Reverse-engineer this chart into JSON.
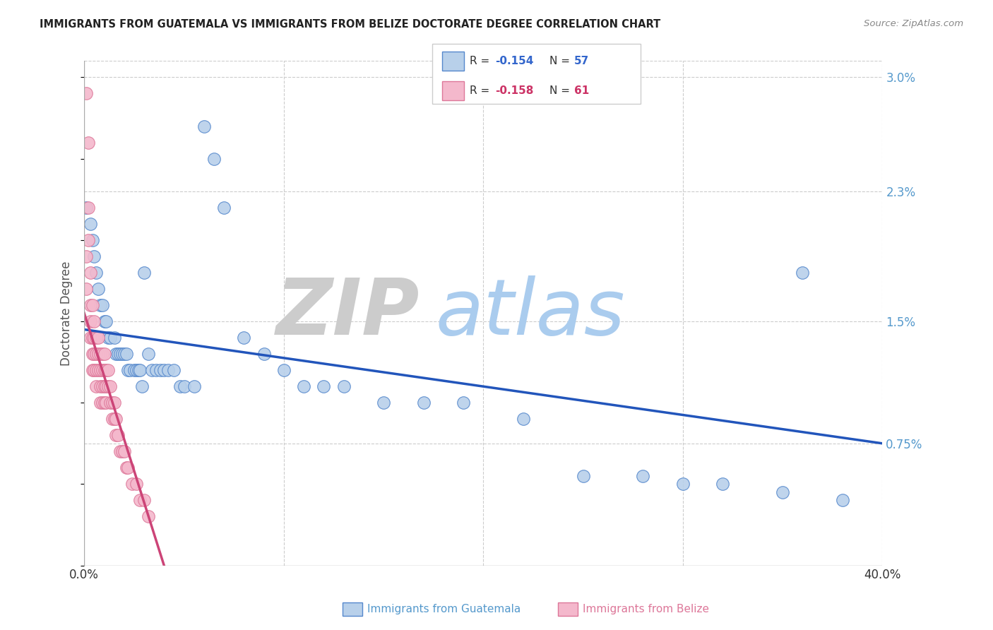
{
  "title": "IMMIGRANTS FROM GUATEMALA VS IMMIGRANTS FROM BELIZE DOCTORATE DEGREE CORRELATION CHART",
  "source": "Source: ZipAtlas.com",
  "ylabel": "Doctorate Degree",
  "legend_R1": "R = -0.154",
  "legend_N1": "N = 57",
  "legend_R2": "R = -0.158",
  "legend_N2": "N = 61",
  "legend_label1": "Immigrants from Guatemala",
  "legend_label2": "Immigrants from Belize",
  "color_guatemala": "#b8d0ea",
  "color_belize": "#f4b8cc",
  "color_edge_guatemala": "#5588cc",
  "color_edge_belize": "#dd7799",
  "color_trendline_guatemala": "#2255bb",
  "color_trendline_belize": "#cc4477",
  "background_color": "#ffffff",
  "watermark_zip_color": "#cccccc",
  "watermark_atlas_color": "#aaccee",
  "xmin": 0.0,
  "xmax": 0.4,
  "ymin": 0.0,
  "ymax": 0.031,
  "ytick_values": [
    0.0075,
    0.015,
    0.023,
    0.03
  ],
  "ytick_labels": [
    "0.75%",
    "1.5%",
    "2.3%",
    "3.0%"
  ],
  "guatemala_x": [
    0.001,
    0.003,
    0.004,
    0.005,
    0.006,
    0.007,
    0.008,
    0.009,
    0.01,
    0.011,
    0.012,
    0.013,
    0.015,
    0.016,
    0.017,
    0.018,
    0.019,
    0.02,
    0.021,
    0.022,
    0.023,
    0.025,
    0.026,
    0.027,
    0.028,
    0.029,
    0.03,
    0.032,
    0.034,
    0.036,
    0.038,
    0.04,
    0.042,
    0.045,
    0.048,
    0.05,
    0.055,
    0.06,
    0.065,
    0.07,
    0.08,
    0.09,
    0.1,
    0.11,
    0.12,
    0.13,
    0.15,
    0.17,
    0.19,
    0.22,
    0.25,
    0.28,
    0.3,
    0.32,
    0.35,
    0.36,
    0.38
  ],
  "guatemala_y": [
    0.022,
    0.021,
    0.02,
    0.019,
    0.018,
    0.017,
    0.016,
    0.016,
    0.015,
    0.015,
    0.014,
    0.014,
    0.014,
    0.013,
    0.013,
    0.013,
    0.013,
    0.013,
    0.013,
    0.012,
    0.012,
    0.012,
    0.012,
    0.012,
    0.012,
    0.011,
    0.018,
    0.013,
    0.012,
    0.012,
    0.012,
    0.012,
    0.012,
    0.012,
    0.011,
    0.011,
    0.011,
    0.027,
    0.025,
    0.022,
    0.014,
    0.013,
    0.012,
    0.011,
    0.011,
    0.011,
    0.01,
    0.01,
    0.01,
    0.009,
    0.0055,
    0.0055,
    0.005,
    0.005,
    0.0045,
    0.018,
    0.004
  ],
  "belize_x": [
    0.001,
    0.001,
    0.001,
    0.002,
    0.002,
    0.002,
    0.003,
    0.003,
    0.003,
    0.003,
    0.004,
    0.004,
    0.004,
    0.004,
    0.005,
    0.005,
    0.005,
    0.005,
    0.006,
    0.006,
    0.006,
    0.006,
    0.007,
    0.007,
    0.007,
    0.008,
    0.008,
    0.008,
    0.008,
    0.009,
    0.009,
    0.009,
    0.009,
    0.01,
    0.01,
    0.01,
    0.01,
    0.011,
    0.011,
    0.011,
    0.012,
    0.012,
    0.013,
    0.013,
    0.014,
    0.014,
    0.015,
    0.015,
    0.016,
    0.016,
    0.017,
    0.018,
    0.019,
    0.02,
    0.021,
    0.022,
    0.024,
    0.026,
    0.028,
    0.03,
    0.032
  ],
  "belize_y": [
    0.029,
    0.019,
    0.017,
    0.026,
    0.022,
    0.02,
    0.018,
    0.016,
    0.015,
    0.014,
    0.016,
    0.014,
    0.013,
    0.012,
    0.015,
    0.014,
    0.013,
    0.012,
    0.014,
    0.013,
    0.012,
    0.011,
    0.014,
    0.013,
    0.012,
    0.013,
    0.012,
    0.011,
    0.01,
    0.013,
    0.012,
    0.011,
    0.01,
    0.013,
    0.012,
    0.011,
    0.01,
    0.012,
    0.011,
    0.01,
    0.012,
    0.011,
    0.011,
    0.01,
    0.01,
    0.009,
    0.01,
    0.009,
    0.009,
    0.008,
    0.008,
    0.007,
    0.007,
    0.007,
    0.006,
    0.006,
    0.005,
    0.005,
    0.004,
    0.004,
    0.003
  ],
  "trendline_belize_x0": 0.0,
  "trendline_belize_x1": 0.04,
  "trendline_belize_y0": 0.0155,
  "trendline_belize_y1": 0.0,
  "trendline_guatemala_x0": 0.0,
  "trendline_guatemala_x1": 0.4,
  "trendline_guatemala_y0": 0.0145,
  "trendline_guatemala_y1": 0.0075
}
